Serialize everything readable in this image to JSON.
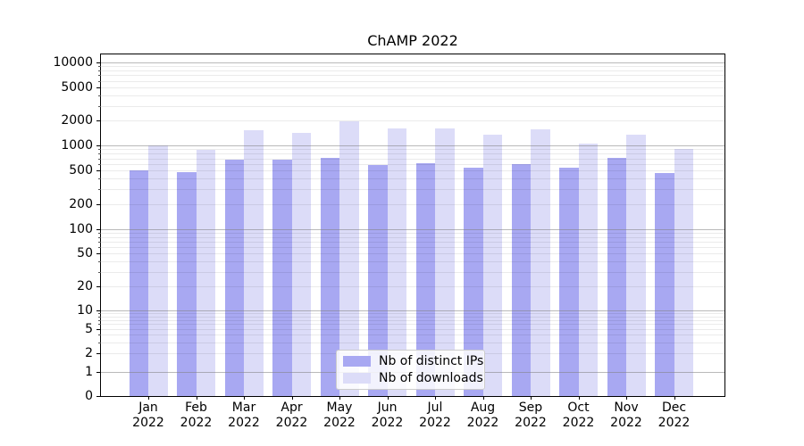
{
  "chart_data": {
    "type": "bar",
    "title": "ChAMP 2022",
    "x_tick_months": [
      "Jan",
      "Feb",
      "Mar",
      "Apr",
      "May",
      "Jun",
      "Jul",
      "Aug",
      "Sep",
      "Oct",
      "Nov",
      "Dec"
    ],
    "x_tick_year": "2022",
    "series": [
      {
        "name": "Nb of distinct IPs",
        "color": "#a8a8f2",
        "values": [
          500,
          480,
          675,
          675,
          715,
          580,
          610,
          540,
          595,
          540,
          715,
          470
        ]
      },
      {
        "name": "Nb of downloads",
        "color": "#dcdcf8",
        "values": [
          1000,
          890,
          1520,
          1410,
          1960,
          1600,
          1600,
          1340,
          1560,
          1050,
          1350,
          910
        ]
      }
    ],
    "y_ticks": [
      0,
      1,
      2,
      5,
      10,
      20,
      50,
      100,
      200,
      500,
      1000,
      2000,
      5000,
      10000
    ],
    "y_scale": "symlog",
    "ylim": [
      0,
      12300
    ],
    "xlabel": "",
    "ylabel": "",
    "grid": {
      "major": true,
      "minor": true
    },
    "legend": {
      "position": "lower center"
    }
  },
  "colors": {
    "background": "#ffffff",
    "spine": "#000000",
    "text": "#000000",
    "grid_major": "#808080",
    "grid_minor": "#e8e8e8"
  }
}
